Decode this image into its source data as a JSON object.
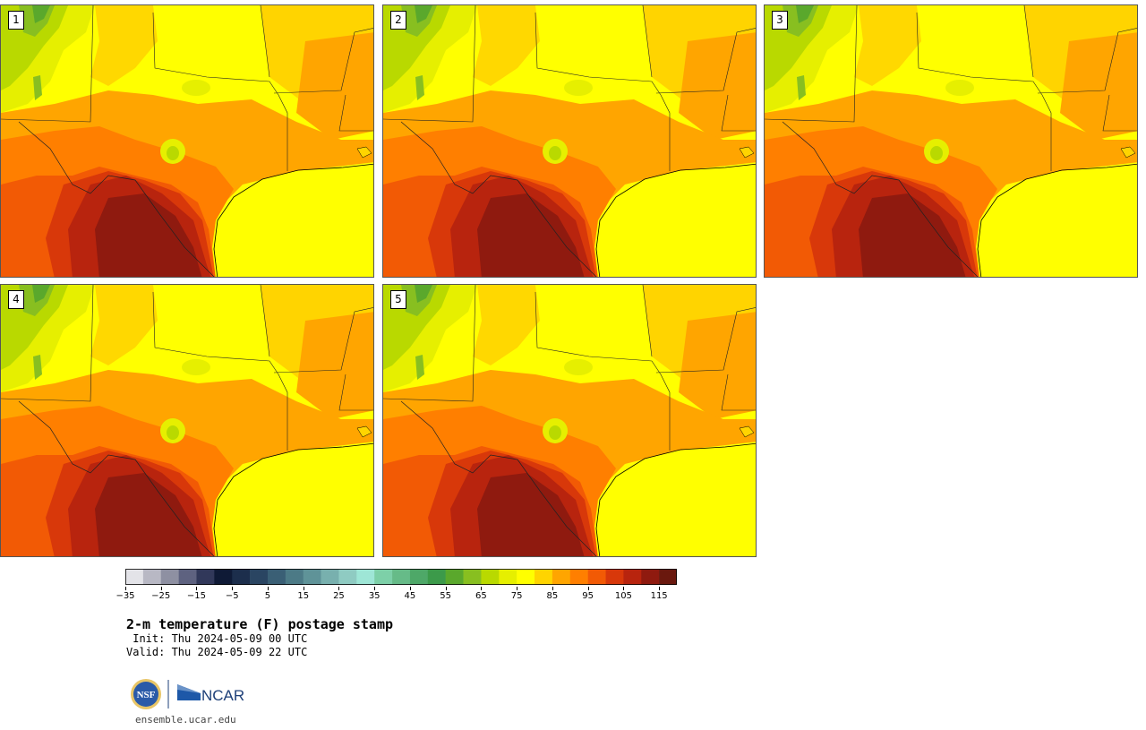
{
  "panels": [
    {
      "label": "1"
    },
    {
      "label": "2"
    },
    {
      "label": "3"
    },
    {
      "label": "4"
    },
    {
      "label": "5"
    }
  ],
  "colorbar": {
    "colors": [
      "#e3e3e8",
      "#b8b8c4",
      "#8e90a2",
      "#5e6280",
      "#31385a",
      "#0f1a36",
      "#1c2e4c",
      "#2a4562",
      "#3a5f75",
      "#4c7a86",
      "#5f9398",
      "#78b0ae",
      "#8fcbc2",
      "#9ee6d6",
      "#7dd0a8",
      "#66bb88",
      "#4ea868",
      "#3c9a4a",
      "#5aa82c",
      "#88bf20",
      "#b9d900",
      "#e6ef00",
      "#ffff00",
      "#ffd400",
      "#ffa500",
      "#ff7f00",
      "#f25a05",
      "#d8380a",
      "#b8240e",
      "#8f1a0f",
      "#6a180e"
    ],
    "tick_labels": [
      "−35",
      "−25",
      "−15",
      "−5",
      "5",
      "15",
      "25",
      "35",
      "45",
      "55",
      "65",
      "75",
      "85",
      "95",
      "105",
      "115"
    ]
  },
  "title": "2-m temperature (F) postage stamp",
  "init": " Init: Thu 2024-05-09 00 UTC",
  "valid": "Valid: Thu 2024-05-09 22 UTC",
  "logo": {
    "nsf": "NSF",
    "ncar": "NCAR"
  },
  "url": "ensemble.ucar.edu"
}
